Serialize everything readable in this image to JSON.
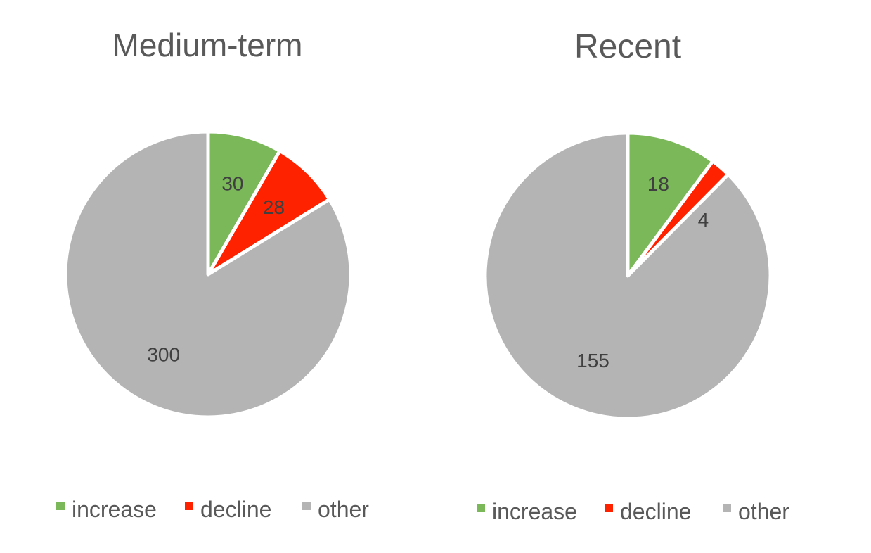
{
  "chart_data": [
    {
      "type": "pie",
      "title": "Medium-term",
      "categories": [
        "increase",
        "decline",
        "other"
      ],
      "values": [
        30,
        28,
        300
      ],
      "colors": [
        "#7ab85a",
        "#ff2200",
        "#b4b4b4"
      ],
      "data_labels": [
        "30",
        "28",
        "300"
      ],
      "legend": "bottom",
      "start_angle": "12 o'clock, clockwise"
    },
    {
      "type": "pie",
      "title": "Recent",
      "categories": [
        "increase",
        "decline",
        "other"
      ],
      "values": [
        18,
        4,
        155
      ],
      "colors": [
        "#7ab85a",
        "#ff2200",
        "#b4b4b4"
      ],
      "data_labels": [
        "18",
        "",
        "155"
      ],
      "outside_labels": [
        "",
        "4",
        ""
      ],
      "legend": "bottom",
      "start_angle": "12 o'clock, clockwise"
    }
  ]
}
